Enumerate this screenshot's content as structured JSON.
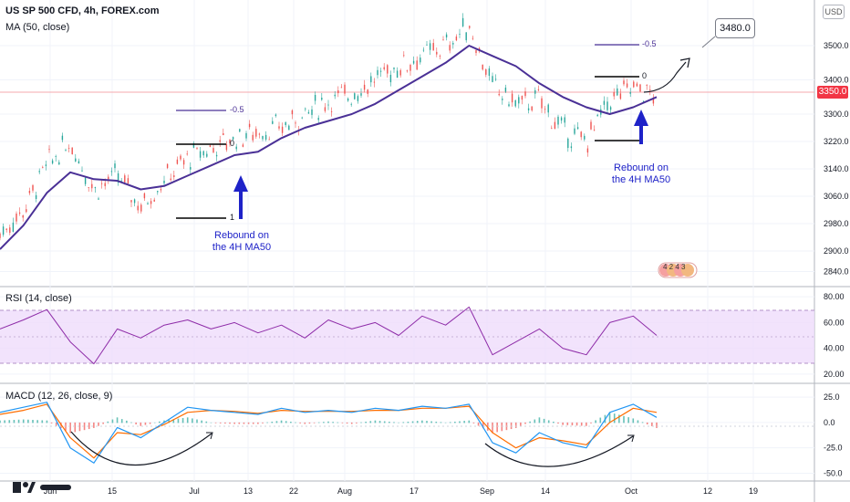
{
  "header": {
    "symbol_title": "US SP 500 CFD, 4h, FOREX.com",
    "ma_legend": "MA (50, close)",
    "currency": "USD"
  },
  "price_panel": {
    "last_price_tag": "3350.0",
    "target_callout": "3480.0",
    "left_fib": {
      "level_0": "0",
      "level_1": "1",
      "level_neg": "-0.5"
    },
    "right_fib": {
      "level_0": "0",
      "level_neg": "-0.5"
    },
    "annotation_left": [
      "Rebound on",
      "the 4H MA50"
    ],
    "annotation_right": [
      "Rebound on",
      "the 4H MA50"
    ],
    "badge_text": "4 2 4 3"
  },
  "rsi_panel": {
    "legend": "RSI (14, close)"
  },
  "macd_panel": {
    "legend": "MACD (12, 26, close, 9)"
  },
  "colors": {
    "ma_line": "#4a3096",
    "rsi_line": "#8e2ca8",
    "rsi_band": "#efdcfb",
    "macd_line": "#2196f3",
    "signal_line": "#ff6d00",
    "hist_pos": "#26a69a",
    "hist_neg": "#ef5350",
    "annotation_blue": "#1e22c8",
    "price_line": "#f23645"
  },
  "chart_data": [
    {
      "type": "line",
      "title": "US SP 500 CFD, 4h, FOREX.com",
      "y_axis_ticks": [
        "3500.0",
        "3400.0",
        "3300.0",
        "3220.0",
        "3140.0",
        "3060.0",
        "2980.0",
        "2900.0",
        "2840.0"
      ],
      "x_axis_ticks": [
        "Jun",
        "15",
        "Jul",
        "13",
        "22",
        "Aug",
        "17",
        "Sep",
        "14",
        "Oct",
        "12",
        "19"
      ],
      "ylim": [
        2820,
        3620
      ],
      "series": [
        {
          "name": "MA (50, close)",
          "x": [
            0,
            10,
            20,
            30,
            40,
            50,
            60,
            70,
            80,
            90,
            100,
            110,
            120,
            130,
            140,
            150,
            160,
            170,
            180,
            190,
            200,
            210,
            220,
            230,
            240,
            250,
            260,
            270,
            280
          ],
          "values": [
            2905,
            2975,
            3070,
            3130,
            3110,
            3105,
            3080,
            3090,
            3120,
            3150,
            3180,
            3190,
            3230,
            3260,
            3280,
            3300,
            3330,
            3370,
            3410,
            3450,
            3500,
            3470,
            3440,
            3390,
            3350,
            3320,
            3300,
            3320,
            3350
          ]
        },
        {
          "name": "price",
          "x": [
            0,
            10,
            20,
            30,
            40,
            50,
            60,
            70,
            80,
            90,
            100,
            110,
            120,
            130,
            140,
            150,
            160,
            170,
            180,
            190,
            200,
            210,
            220,
            230,
            240,
            250,
            260,
            270,
            280
          ],
          "values": [
            2950,
            3020,
            3150,
            3220,
            3080,
            3120,
            3030,
            3110,
            3170,
            3200,
            3230,
            3250,
            3260,
            3300,
            3340,
            3360,
            3400,
            3440,
            3470,
            3500,
            3560,
            3380,
            3330,
            3340,
            3250,
            3220,
            3340,
            3380,
            3350
          ]
        }
      ]
    },
    {
      "type": "line",
      "title": "RSI (14, close)",
      "y_axis_ticks": [
        "80.00",
        "60.00",
        "40.00",
        "20.00"
      ],
      "ylim": [
        15,
        85
      ],
      "series": [
        {
          "name": "RSI (14, close)",
          "x": [
            0,
            10,
            20,
            30,
            40,
            50,
            60,
            70,
            80,
            90,
            100,
            110,
            120,
            130,
            140,
            150,
            160,
            170,
            180,
            190,
            200,
            210,
            220,
            230,
            240,
            250,
            260,
            270,
            280
          ],
          "values": [
            55,
            62,
            70,
            45,
            28,
            55,
            48,
            58,
            62,
            55,
            60,
            52,
            58,
            48,
            62,
            55,
            60,
            50,
            65,
            58,
            72,
            35,
            45,
            55,
            40,
            35,
            60,
            65,
            50
          ]
        }
      ]
    },
    {
      "type": "line",
      "title": "MACD (12, 26, close, 9)",
      "y_axis_ticks": [
        "25.0",
        "0.0",
        "-25.0",
        "-50.0"
      ],
      "ylim": [
        -55,
        35
      ],
      "series": [
        {
          "name": "MACD",
          "x": [
            0,
            10,
            20,
            30,
            40,
            50,
            60,
            70,
            80,
            90,
            100,
            110,
            120,
            130,
            140,
            150,
            160,
            170,
            180,
            190,
            200,
            210,
            220,
            230,
            240,
            250,
            260,
            270,
            280
          ],
          "values": [
            10,
            15,
            20,
            -25,
            -40,
            -5,
            -15,
            0,
            15,
            12,
            10,
            8,
            14,
            10,
            12,
            10,
            14,
            12,
            16,
            14,
            18,
            -20,
            -30,
            -10,
            -20,
            -25,
            10,
            18,
            5
          ]
        },
        {
          "name": "signal",
          "x": [
            0,
            10,
            20,
            30,
            40,
            50,
            60,
            70,
            80,
            90,
            100,
            110,
            120,
            130,
            140,
            150,
            160,
            170,
            180,
            190,
            200,
            210,
            220,
            230,
            240,
            250,
            260,
            270,
            280
          ],
          "values": [
            8,
            12,
            18,
            -15,
            -35,
            -10,
            -12,
            -2,
            10,
            12,
            11,
            9,
            12,
            11,
            11,
            11,
            12,
            12,
            14,
            14,
            16,
            -10,
            -25,
            -15,
            -18,
            -22,
            0,
            14,
            10
          ]
        }
      ]
    }
  ]
}
